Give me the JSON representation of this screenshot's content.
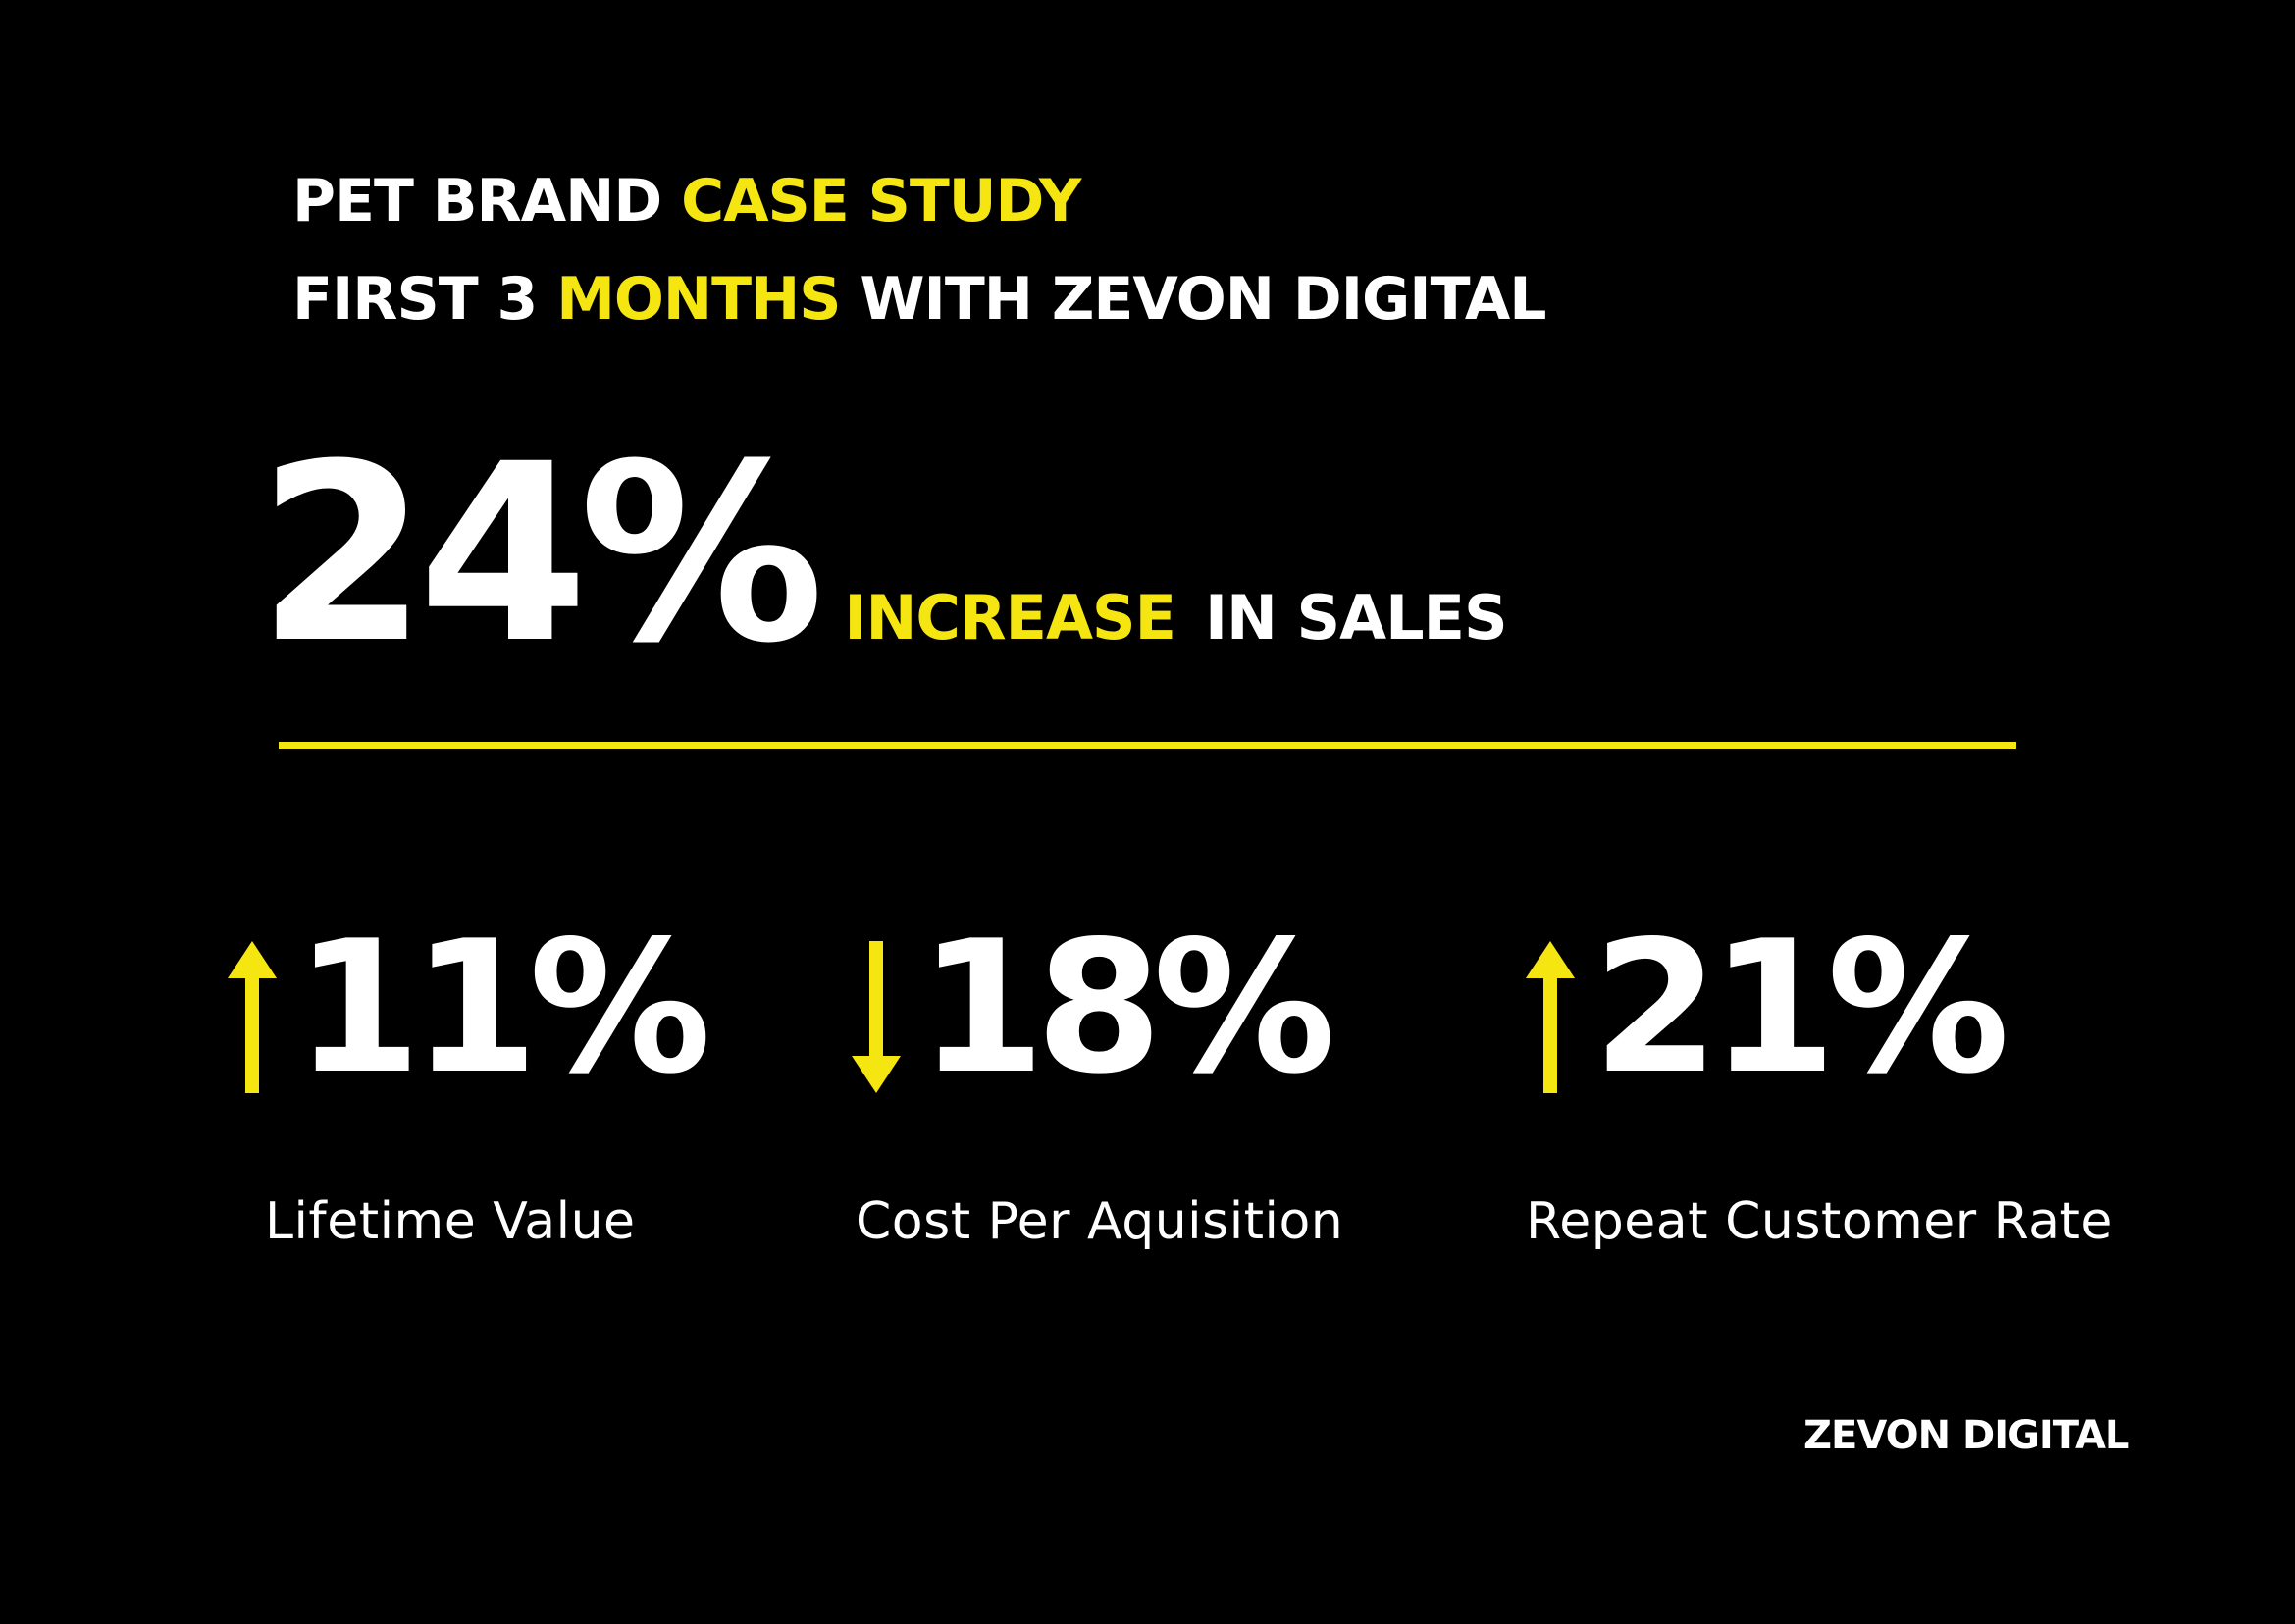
{
  "colors": {
    "background": "#000000",
    "accent": "#f5e612",
    "text": "#ffffff"
  },
  "title": {
    "line1_part1": "PET BRAND ",
    "line1_part2": "CASE STUDY",
    "line2_part1": "FIRST 3 ",
    "line2_part2": "MONTHS",
    "line2_part3": " WITH ZEVON DIGITAL"
  },
  "headline": {
    "value": "24%",
    "highlight": "INCREASE",
    "rest": "IN SALES"
  },
  "metrics": [
    {
      "direction": "up",
      "icon": "arrow-up-icon",
      "value": "11%",
      "label": "Lifetime Value"
    },
    {
      "direction": "down",
      "icon": "arrow-down-icon",
      "value": "18%",
      "label": "Cost Per Aquisition"
    },
    {
      "direction": "up",
      "icon": "arrow-up-icon",
      "value": "21%",
      "label": "Repeat Customer Rate"
    }
  ],
  "footer": {
    "brand": "ZEVON DIGITAL"
  }
}
